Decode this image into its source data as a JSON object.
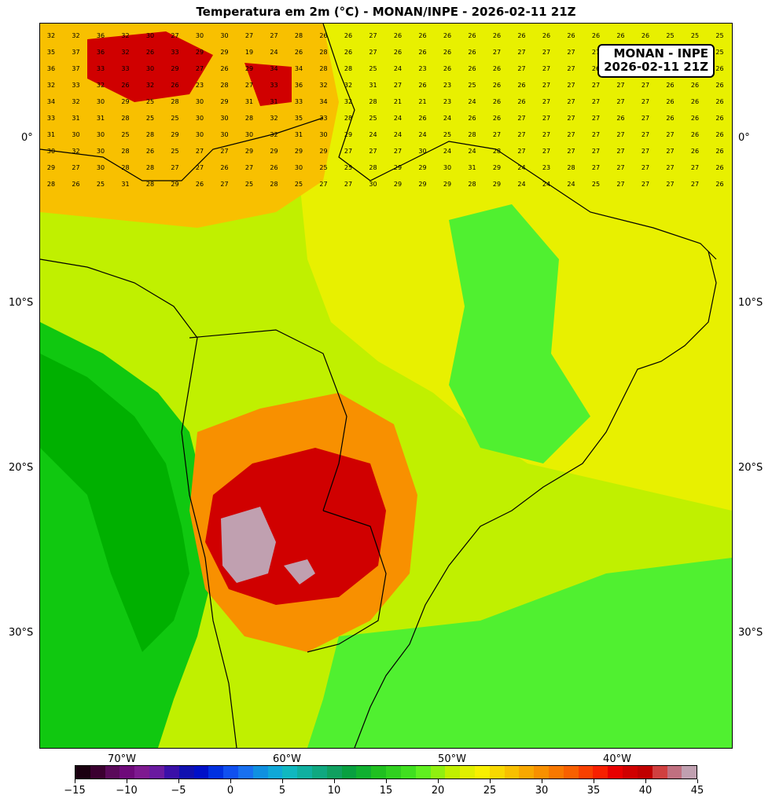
{
  "title": "Temperatura em 2m (°C) - MONAN/INPE - 2026-02-11 21Z",
  "infobox": {
    "line1": "MONAN - INPE",
    "line2": "2026-02-11 21Z"
  },
  "lat_labels": [
    "0°",
    "10°S",
    "20°S",
    "30°S"
  ],
  "lon_labels": [
    "70°W",
    "60°W",
    "50°W",
    "40°W"
  ],
  "colorbar": {
    "ticks": [
      "−15",
      "−10",
      "−5",
      "0",
      "5",
      "10",
      "15",
      "20",
      "25",
      "30",
      "35",
      "40",
      "45"
    ],
    "colors": [
      "#1a0010",
      "#3b0030",
      "#5a0a5a",
      "#6e0a7a",
      "#7e1a90",
      "#6a1aa0",
      "#3a10a8",
      "#1010b0",
      "#0010c8",
      "#0030e0",
      "#1050f0",
      "#1870f0",
      "#1090e0",
      "#10a8d8",
      "#10b8c0",
      "#10b0a0",
      "#10a880",
      "#10a060",
      "#08a040",
      "#10b030",
      "#20c020",
      "#30d020",
      "#40e020",
      "#60f020",
      "#90f010",
      "#c0f000",
      "#e0f000",
      "#f8f000",
      "#f8d800",
      "#f8c000",
      "#f8a800",
      "#f89000",
      "#f87800",
      "#f86000",
      "#f84000",
      "#f82000",
      "#e80000",
      "#d00000",
      "#c00000",
      "#d04040",
      "#c07080",
      "#c0a0b0"
    ]
  },
  "map": {
    "colors": {
      "t15": "#00b000",
      "t18": "#10c810",
      "t22": "#50f030",
      "t25": "#c0f000",
      "t27": "#e8f000",
      "t30": "#f8c000",
      "t33": "#f89000",
      "t36": "#f84000",
      "t40": "#d00000",
      "t43": "#c04050",
      "t45": "#c0a0b0"
    },
    "grid_values": [
      [
        "32",
        "32",
        "36",
        "32",
        "30",
        "27",
        "30",
        "30",
        "27",
        "27",
        "28",
        "26",
        "26",
        "27",
        "26",
        "26",
        "26",
        "26",
        "26",
        "26",
        "26",
        "26",
        "26",
        "26",
        "26",
        "25",
        "25",
        "25"
      ],
      [
        "35",
        "37",
        "36",
        "32",
        "26",
        "33",
        "29",
        "29",
        "19",
        "24",
        "26",
        "28",
        "26",
        "27",
        "26",
        "26",
        "26",
        "26",
        "27",
        "27",
        "27",
        "27",
        "27",
        "26",
        "26",
        "26",
        "26",
        "25"
      ],
      [
        "36",
        "37",
        "33",
        "33",
        "30",
        "29",
        "27",
        "26",
        "29",
        "34",
        "34",
        "28",
        "28",
        "25",
        "24",
        "23",
        "26",
        "26",
        "26",
        "27",
        "27",
        "27",
        "26",
        "26",
        "26",
        "26",
        "26",
        "26"
      ],
      [
        "32",
        "33",
        "32",
        "26",
        "32",
        "26",
        "23",
        "28",
        "27",
        "33",
        "36",
        "32",
        "32",
        "31",
        "27",
        "26",
        "23",
        "25",
        "26",
        "26",
        "27",
        "27",
        "27",
        "27",
        "27",
        "26",
        "26",
        "26"
      ],
      [
        "34",
        "32",
        "30",
        "29",
        "25",
        "28",
        "30",
        "29",
        "31",
        "31",
        "33",
        "34",
        "32",
        "28",
        "21",
        "21",
        "23",
        "24",
        "26",
        "26",
        "27",
        "27",
        "27",
        "27",
        "27",
        "26",
        "26",
        "26"
      ],
      [
        "33",
        "31",
        "31",
        "28",
        "25",
        "25",
        "30",
        "30",
        "28",
        "32",
        "35",
        "33",
        "28",
        "25",
        "24",
        "26",
        "24",
        "26",
        "26",
        "27",
        "27",
        "27",
        "27",
        "26",
        "27",
        "26",
        "26",
        "26"
      ],
      [
        "31",
        "30",
        "30",
        "25",
        "28",
        "29",
        "30",
        "30",
        "30",
        "32",
        "31",
        "30",
        "29",
        "24",
        "24",
        "24",
        "25",
        "28",
        "27",
        "27",
        "27",
        "27",
        "27",
        "27",
        "27",
        "27",
        "26",
        "26"
      ],
      [
        "30",
        "32",
        "30",
        "28",
        "26",
        "25",
        "27",
        "27",
        "29",
        "29",
        "29",
        "29",
        "27",
        "27",
        "27",
        "30",
        "24",
        "24",
        "28",
        "27",
        "27",
        "27",
        "27",
        "27",
        "27",
        "27",
        "26",
        "26"
      ],
      [
        "29",
        "27",
        "30",
        "28",
        "28",
        "27",
        "27",
        "26",
        "27",
        "26",
        "30",
        "25",
        "25",
        "28",
        "29",
        "29",
        "30",
        "31",
        "29",
        "24",
        "23",
        "28",
        "27",
        "27",
        "27",
        "27",
        "27",
        "26"
      ],
      [
        "28",
        "26",
        "25",
        "31",
        "28",
        "29",
        "26",
        "27",
        "25",
        "28",
        "25",
        "27",
        "27",
        "30",
        "29",
        "29",
        "29",
        "28",
        "29",
        "24",
        "24",
        "24",
        "25",
        "27",
        "27",
        "27",
        "27",
        "26"
      ]
    ]
  }
}
